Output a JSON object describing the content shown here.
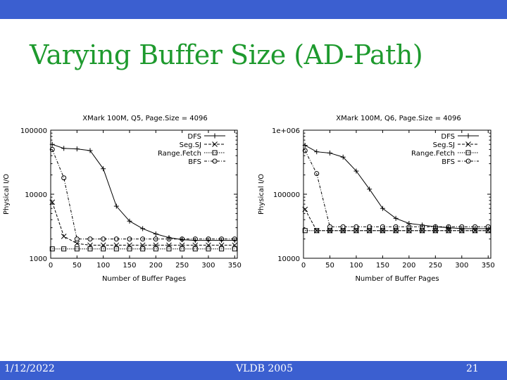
{
  "slide": {
    "title": "Varying Buffer Size (AD-Path)",
    "footer": {
      "date": "1/12/2022",
      "conference": "VLDB 2005",
      "page_number": "21"
    },
    "colors": {
      "title": "#1e9a2e",
      "bars": "#3b5fd0",
      "footer_text": "#ffffff"
    }
  },
  "chart_data": [
    {
      "type": "line",
      "title": "XMark 100M, Q5, Page.Size = 4096",
      "xlabel": "Number of Buffer Pages",
      "ylabel": "Physical I/O",
      "xlim": [
        0,
        355
      ],
      "ylim": [
        1000,
        100000
      ],
      "yscale": "log",
      "xticks": [
        "0",
        "50",
        "100",
        "150",
        "200",
        "250",
        "300",
        "350"
      ],
      "yticks": [
        "1000",
        "10000",
        "100000"
      ],
      "legend_position": "top-right",
      "grid": false,
      "x": [
        3,
        25,
        50,
        75,
        100,
        125,
        150,
        175,
        200,
        225,
        250,
        275,
        300,
        325,
        350
      ],
      "series": [
        {
          "name": "DFS",
          "marker": "+",
          "dash": "solid",
          "values": [
            60000,
            52000,
            51000,
            48000,
            25000,
            6500,
            3800,
            2900,
            2400,
            2100,
            1950,
            1900,
            1900,
            1900,
            1900
          ]
        },
        {
          "name": "Seg.SJ",
          "marker": "x",
          "dash": "dashed",
          "values": [
            7500,
            2200,
            1700,
            1600,
            1600,
            1600,
            1600,
            1600,
            1600,
            1600,
            1600,
            1600,
            1600,
            1600,
            1600
          ]
        },
        {
          "name": "Range.Fetch",
          "marker": "square",
          "dash": "dotted",
          "values": [
            1400,
            1400,
            1400,
            1400,
            1400,
            1400,
            1400,
            1400,
            1400,
            1400,
            1400,
            1400,
            1400,
            1400,
            1400
          ]
        },
        {
          "name": "BFS",
          "marker": "circle",
          "dash": "dash-dot",
          "values": [
            50000,
            18000,
            2000,
            2000,
            2000,
            2000,
            2000,
            2000,
            2000,
            2000,
            2000,
            2000,
            2000,
            2000,
            2000
          ]
        }
      ]
    },
    {
      "type": "line",
      "title": "XMark 100M, Q6, Page.Size = 4096",
      "xlabel": "Number of Buffer Pages",
      "ylabel": "Physical I/O",
      "xlim": [
        0,
        355
      ],
      "ylim": [
        10000,
        1000000
      ],
      "yscale": "log",
      "xticks": [
        "0",
        "50",
        "100",
        "150",
        "200",
        "250",
        "300",
        "350"
      ],
      "yticks": [
        "10000",
        "100000",
        "1e+006"
      ],
      "legend_position": "top-right",
      "grid": false,
      "x": [
        3,
        25,
        50,
        75,
        100,
        125,
        150,
        175,
        200,
        225,
        250,
        275,
        300,
        325,
        350
      ],
      "series": [
        {
          "name": "DFS",
          "marker": "+",
          "dash": "solid",
          "values": [
            580000,
            460000,
            440000,
            380000,
            230000,
            120000,
            60000,
            42000,
            35000,
            33000,
            31000,
            30000,
            29000,
            29000,
            29000
          ]
        },
        {
          "name": "Seg.SJ",
          "marker": "x",
          "dash": "dashed",
          "values": [
            58000,
            27000,
            27000,
            27000,
            27000,
            27000,
            27000,
            27000,
            27000,
            27000,
            27000,
            27000,
            27000,
            27000,
            27000
          ]
        },
        {
          "name": "Range.Fetch",
          "marker": "square",
          "dash": "dotted",
          "values": [
            27000,
            27000,
            27000,
            27000,
            27000,
            27000,
            27000,
            27000,
            27000,
            27000,
            27000,
            27000,
            27000,
            27000,
            27000
          ]
        },
        {
          "name": "BFS",
          "marker": "circle",
          "dash": "dash-dot",
          "values": [
            480000,
            210000,
            31000,
            31000,
            31000,
            31000,
            31000,
            31000,
            31000,
            31000,
            31000,
            31000,
            31000,
            31000,
            31000
          ]
        }
      ]
    }
  ]
}
